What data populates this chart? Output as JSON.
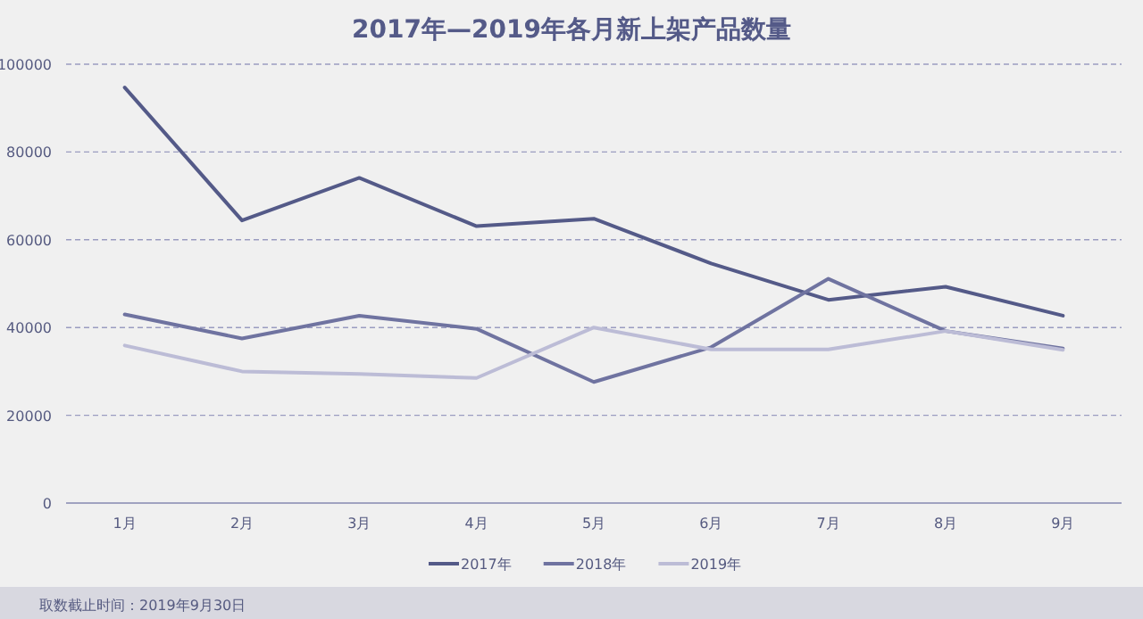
{
  "chart_data": {
    "type": "line",
    "title": "2017年—2019年各月新上架产品数量",
    "categories": [
      "1月",
      "2月",
      "3月",
      "4月",
      "5月",
      "6月",
      "7月",
      "8月",
      "9月"
    ],
    "series": [
      {
        "name": "2017年",
        "color": "#545a88",
        "values": [
          94700,
          64400,
          74100,
          63100,
          64800,
          54600,
          46300,
          49300,
          42700
        ]
      },
      {
        "name": "2018年",
        "color": "#6f73a0",
        "values": [
          43000,
          37500,
          42700,
          39700,
          27600,
          35500,
          51100,
          39200,
          35200
        ]
      },
      {
        "name": "2019年",
        "color": "#bcbcd6",
        "values": [
          35900,
          30000,
          29400,
          28500,
          40000,
          35000,
          35000,
          39200,
          34900
        ]
      }
    ],
    "ylim": [
      0,
      100000
    ],
    "yticks": [
      0,
      20000,
      40000,
      60000,
      80000,
      100000
    ],
    "grid": "y",
    "legend": "bottom",
    "marker": "none",
    "line_style": "solid",
    "annotations": [
      "取数截止时间：2019年9月30日"
    ]
  }
}
